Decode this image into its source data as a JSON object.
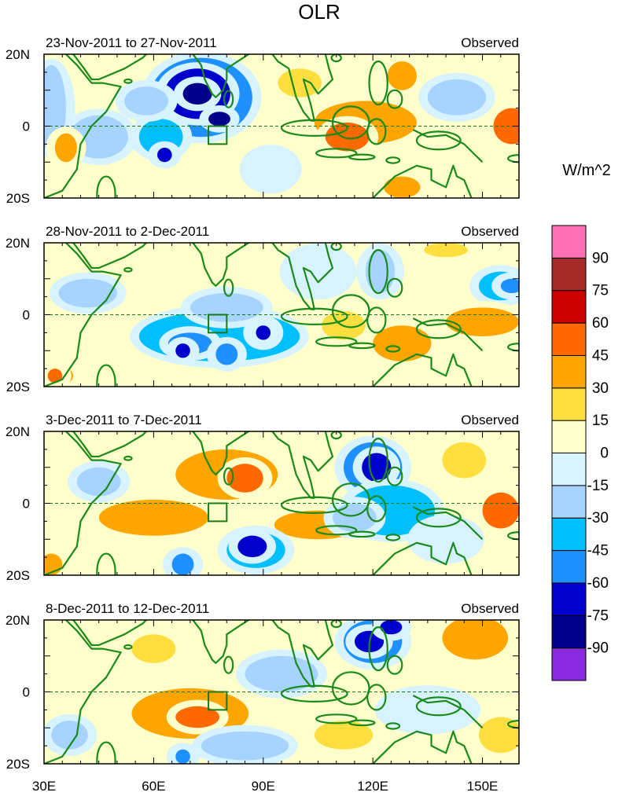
{
  "chart_data": {
    "type": "heatmap",
    "title": "OLR",
    "units_label": "W/m^2",
    "status_label": "Observed",
    "x_ticks": [
      "30E",
      "60E",
      "90E",
      "120E",
      "150E"
    ],
    "x_tick_values": [
      30,
      60,
      90,
      120,
      150
    ],
    "x_range": [
      30,
      160
    ],
    "y_ticks": [
      "20N",
      "0",
      "20S"
    ],
    "y_tick_values": [
      20,
      0,
      -20
    ],
    "y_range": [
      -20,
      20
    ],
    "colorbar": {
      "bounds": [
        -105,
        -90,
        -75,
        -60,
        -45,
        -30,
        -15,
        0,
        15,
        30,
        45,
        60,
        75,
        90,
        105
      ],
      "labels": [
        "-90",
        "-75",
        "-60",
        "-45",
        "-30",
        "-15",
        "0",
        "15",
        "30",
        "45",
        "60",
        "75",
        "90"
      ],
      "colors": [
        "#8a2be2",
        "#00008b",
        "#0000cd",
        "#1e90ff",
        "#00bfff",
        "#a6d3ff",
        "#d6f3ff",
        "#ffffcc",
        "#ffdf40",
        "#ffa500",
        "#ff6a00",
        "#cd0000",
        "#a52a2a",
        "#ff6fb5"
      ]
    },
    "box_region": {
      "lon": [
        75,
        80
      ],
      "lat": [
        -5,
        0
      ]
    },
    "panels": [
      {
        "period": "23-Nov-2011 to 27-Nov-2011",
        "anomalies": [
          {
            "lon": 73,
            "lat": 8,
            "rx": 14,
            "ry": 11,
            "v": -60
          },
          {
            "lon": 72,
            "lat": 9,
            "rx": 9,
            "ry": 7,
            "v": -75
          },
          {
            "lon": 72,
            "lat": 9,
            "rx": 4,
            "ry": 3,
            "v": -90
          },
          {
            "lon": 78,
            "lat": 2,
            "rx": 3,
            "ry": 2,
            "v": -90
          },
          {
            "lon": 62,
            "lat": -3,
            "rx": 6,
            "ry": 5,
            "v": -45
          },
          {
            "lon": 63,
            "lat": -8,
            "rx": 2,
            "ry": 2,
            "v": -75
          },
          {
            "lon": 58,
            "lat": 7,
            "rx": 6,
            "ry": 4,
            "v": -30
          },
          {
            "lon": 45,
            "lat": -3,
            "rx": 8,
            "ry": 6,
            "v": -30
          },
          {
            "lon": 32,
            "lat": 5,
            "rx": 4,
            "ry": 12,
            "v": -30
          },
          {
            "lon": 118,
            "lat": 1,
            "rx": 14,
            "ry": 6,
            "v": 30
          },
          {
            "lon": 113,
            "lat": -3,
            "rx": 6,
            "ry": 4,
            "v": 45
          },
          {
            "lon": 128,
            "lat": 14,
            "rx": 4,
            "ry": 4,
            "v": 30
          },
          {
            "lon": 128,
            "lat": -17,
            "rx": 5,
            "ry": 3,
            "v": 30
          },
          {
            "lon": 158,
            "lat": 0,
            "rx": 5,
            "ry": 5,
            "v": 45
          },
          {
            "lon": 100,
            "lat": 12,
            "rx": 6,
            "ry": 4,
            "v": 15
          },
          {
            "lon": 143,
            "lat": 8,
            "rx": 8,
            "ry": 5,
            "v": -30
          },
          {
            "lon": 92,
            "lat": -12,
            "rx": 6,
            "ry": 5,
            "v": -15
          },
          {
            "lon": 36,
            "lat": -6,
            "rx": 3,
            "ry": 4,
            "v": 30
          }
        ]
      },
      {
        "period": "28-Nov-2011 to 2-Dec-2011",
        "anomalies": [
          {
            "lon": 78,
            "lat": -6,
            "rx": 22,
            "ry": 7,
            "v": -45
          },
          {
            "lon": 70,
            "lat": -8,
            "rx": 6,
            "ry": 3,
            "v": -60
          },
          {
            "lon": 80,
            "lat": -11,
            "rx": 3,
            "ry": 3,
            "v": -60
          },
          {
            "lon": 68,
            "lat": -10,
            "rx": 2,
            "ry": 2,
            "v": -75
          },
          {
            "lon": 90,
            "lat": -5,
            "rx": 3,
            "ry": 3,
            "v": -60
          },
          {
            "lon": 90,
            "lat": -5,
            "rx": 2,
            "ry": 2,
            "v": -75
          },
          {
            "lon": 80,
            "lat": 2,
            "rx": 10,
            "ry": 4,
            "v": -30
          },
          {
            "lon": 105,
            "lat": 12,
            "rx": 8,
            "ry": 6,
            "v": -15
          },
          {
            "lon": 122,
            "lat": 12,
            "rx": 4,
            "ry": 6,
            "v": -30
          },
          {
            "lon": 155,
            "lat": 8,
            "rx": 6,
            "ry": 4,
            "v": -45
          },
          {
            "lon": 158,
            "lat": 8,
            "rx": 3,
            "ry": 2,
            "v": -60
          },
          {
            "lon": 128,
            "lat": -8,
            "rx": 8,
            "ry": 5,
            "v": 30
          },
          {
            "lon": 150,
            "lat": -2,
            "rx": 10,
            "ry": 4,
            "v": 30
          },
          {
            "lon": 33,
            "lat": -17,
            "rx": 5,
            "ry": 3,
            "v": 30
          },
          {
            "lon": 33,
            "lat": -17,
            "rx": 2,
            "ry": 2,
            "v": 45
          },
          {
            "lon": 42,
            "lat": 6,
            "rx": 8,
            "ry": 4,
            "v": -30
          },
          {
            "lon": 140,
            "lat": 18,
            "rx": 6,
            "ry": 2,
            "v": 15
          },
          {
            "lon": 112,
            "lat": -3,
            "rx": 6,
            "ry": 4,
            "v": 15
          }
        ]
      },
      {
        "period": "3-Dec-2011 to 7-Dec-2011",
        "anomalies": [
          {
            "lon": 80,
            "lat": 8,
            "rx": 14,
            "ry": 7,
            "v": 30
          },
          {
            "lon": 85,
            "lat": 7,
            "rx": 5,
            "ry": 4,
            "v": 45
          },
          {
            "lon": 60,
            "lat": -4,
            "rx": 15,
            "ry": 5,
            "v": 30
          },
          {
            "lon": 105,
            "lat": -6,
            "rx": 12,
            "ry": 4,
            "v": 30
          },
          {
            "lon": 88,
            "lat": -13,
            "rx": 8,
            "ry": 5,
            "v": -45
          },
          {
            "lon": 87,
            "lat": -12,
            "rx": 4,
            "ry": 3,
            "v": -75
          },
          {
            "lon": 68,
            "lat": -17,
            "rx": 3,
            "ry": 3,
            "v": -60
          },
          {
            "lon": 120,
            "lat": 10,
            "rx": 8,
            "ry": 7,
            "v": -60
          },
          {
            "lon": 121,
            "lat": 10,
            "rx": 4,
            "ry": 4,
            "v": -75
          },
          {
            "lon": 125,
            "lat": -2,
            "rx": 12,
            "ry": 7,
            "v": -45
          },
          {
            "lon": 115,
            "lat": -4,
            "rx": 6,
            "ry": 4,
            "v": -30
          },
          {
            "lon": 155,
            "lat": -2,
            "rx": 5,
            "ry": 5,
            "v": 45
          },
          {
            "lon": 45,
            "lat": 6,
            "rx": 6,
            "ry": 4,
            "v": -30
          },
          {
            "lon": 32,
            "lat": -17,
            "rx": 3,
            "ry": 3,
            "v": 30
          },
          {
            "lon": 145,
            "lat": 12,
            "rx": 6,
            "ry": 5,
            "v": 15
          },
          {
            "lon": 140,
            "lat": -10,
            "rx": 8,
            "ry": 5,
            "v": -15
          }
        ]
      },
      {
        "period": "8-Dec-2011 to 12-Dec-2011",
        "anomalies": [
          {
            "lon": 70,
            "lat": -6,
            "rx": 16,
            "ry": 7,
            "v": 30
          },
          {
            "lon": 72,
            "lat": -7,
            "rx": 6,
            "ry": 3,
            "v": 45
          },
          {
            "lon": 120,
            "lat": 14,
            "rx": 8,
            "ry": 6,
            "v": -60
          },
          {
            "lon": 119,
            "lat": 14,
            "rx": 4,
            "ry": 3,
            "v": -75
          },
          {
            "lon": 125,
            "lat": 18,
            "rx": 3,
            "ry": 2,
            "v": -75
          },
          {
            "lon": 148,
            "lat": 15,
            "rx": 9,
            "ry": 6,
            "v": 30
          },
          {
            "lon": 95,
            "lat": 5,
            "rx": 10,
            "ry": 5,
            "v": -30
          },
          {
            "lon": 85,
            "lat": -15,
            "rx": 12,
            "ry": 4,
            "v": -30
          },
          {
            "lon": 68,
            "lat": -18,
            "rx": 2,
            "ry": 2,
            "v": -60
          },
          {
            "lon": 135,
            "lat": -5,
            "rx": 12,
            "ry": 5,
            "v": -15
          },
          {
            "lon": 112,
            "lat": -12,
            "rx": 8,
            "ry": 4,
            "v": 15
          },
          {
            "lon": 60,
            "lat": 12,
            "rx": 6,
            "ry": 4,
            "v": 15
          },
          {
            "lon": 37,
            "lat": -12,
            "rx": 5,
            "ry": 4,
            "v": -30
          },
          {
            "lon": 155,
            "lat": -12,
            "rx": 6,
            "ry": 5,
            "v": 15
          }
        ]
      }
    ]
  }
}
